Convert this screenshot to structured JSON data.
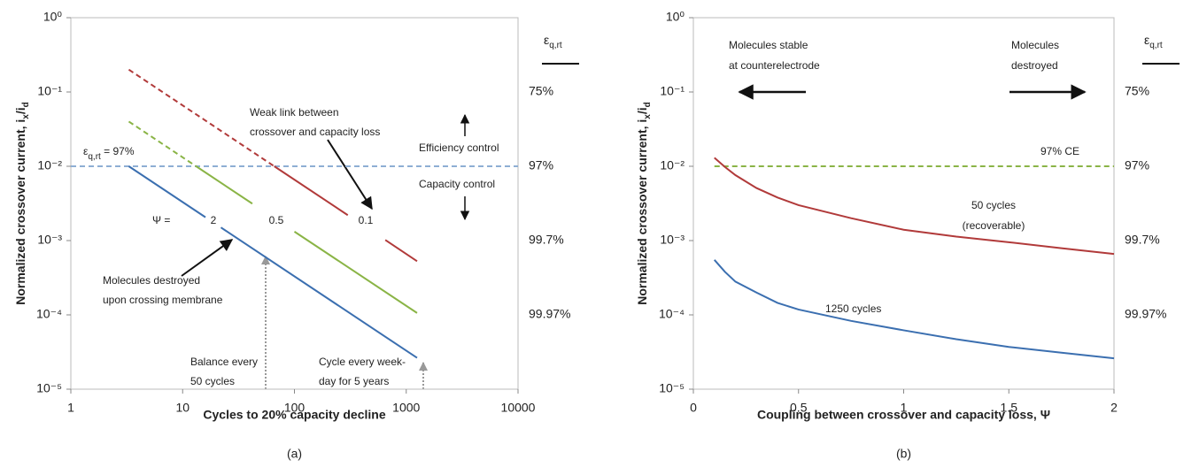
{
  "chart_data": [
    {
      "type": "line",
      "xscale": "log",
      "yscale": "log",
      "xlim": [
        1,
        10000
      ],
      "ylim": [
        1e-05,
        1
      ],
      "xticks": [
        1,
        10,
        100,
        1000,
        10000
      ],
      "yticks": [
        {
          "value": 1,
          "label": "10⁰"
        },
        {
          "value": 0.1,
          "label": "10⁻¹"
        },
        {
          "value": 0.01,
          "label": "10⁻²"
        },
        {
          "value": 0.001,
          "label": "10⁻³"
        },
        {
          "value": 0.0001,
          "label": "10⁻⁴"
        },
        {
          "value": 1e-05,
          "label": "10⁻⁵"
        }
      ],
      "x_title": "Cycles to 20% capacity decline",
      "y_title": [
        "Normalized crossover current, i",
        "x",
        "/i",
        "d"
      ],
      "y2_title": [
        "ε",
        "q,rt"
      ],
      "right_labels": [
        {
          "y": 0.1,
          "text": "75%"
        },
        {
          "y": 0.01,
          "text": "97%"
        },
        {
          "y": 0.001,
          "text": "99.7%"
        },
        {
          "y": 0.0001,
          "text": "99.97%"
        }
      ],
      "caption": "(a)",
      "series": [
        {
          "color": "#8eaed4",
          "dash": true,
          "x": [
            1,
            10000
          ],
          "values": [
            0.01,
            0.01
          ]
        },
        {
          "color": "#3b6fb0",
          "dash": false,
          "x": [
            3.3,
            16,
            null,
            22,
            1250
          ],
          "values": [
            0.01,
            0.00206,
            null,
            0.0015,
            2.64e-05
          ]
        },
        {
          "color": "#8ab446",
          "dash": true,
          "x": [
            3.3,
            13.2
          ],
          "values": [
            0.04,
            0.01
          ]
        },
        {
          "color": "#8ab446",
          "dash": false,
          "x": [
            13.2,
            42,
            null,
            100,
            1250
          ],
          "values": [
            0.01,
            0.00314,
            null,
            0.00132,
            0.000106
          ]
        },
        {
          "color": "#b13a3a",
          "dash": true,
          "x": [
            3.3,
            66
          ],
          "values": [
            0.2,
            0.01
          ]
        },
        {
          "color": "#b13a3a",
          "dash": false,
          "x": [
            66,
            300,
            null,
            650,
            1250
          ],
          "values": [
            0.01,
            0.0022,
            null,
            0.00102,
            0.000528
          ]
        }
      ],
      "annotations": [
        "Weak link between",
        "crossover and capacity loss",
        "Efficiency control",
        "Capacity control",
        "Ψ =",
        "2",
        "0.5",
        "0.1",
        [
          "ε",
          "q,rt",
          " = 97%"
        ],
        "Molecules destroyed",
        "upon crossing membrane",
        "Balance every",
        "50 cycles",
        "Cycle every week-",
        "day for 5 years"
      ]
    },
    {
      "type": "line",
      "xscale": "linear",
      "yscale": "log",
      "xlim": [
        0,
        2
      ],
      "ylim": [
        1e-05,
        1
      ],
      "xticks": [
        0,
        0.5,
        1,
        1.5,
        2
      ],
      "yticks": [
        {
          "value": 1,
          "label": "10⁰"
        },
        {
          "value": 0.1,
          "label": "10⁻¹"
        },
        {
          "value": 0.01,
          "label": "10⁻²"
        },
        {
          "value": 0.001,
          "label": "10⁻³"
        },
        {
          "value": 0.0001,
          "label": "10⁻⁴"
        },
        {
          "value": 1e-05,
          "label": "10⁻⁵"
        }
      ],
      "x_title": "Coupling between crossover and capacity loss, Ψ",
      "y_title": [
        "Normalized crossover current, i",
        "x",
        "/i",
        "d"
      ],
      "y2_title": [
        "ε",
        "q,rt"
      ],
      "right_labels": [
        {
          "y": 0.1,
          "text": "75%"
        },
        {
          "y": 0.01,
          "text": "97%"
        },
        {
          "y": 0.001,
          "text": "99.7%"
        },
        {
          "y": 0.0001,
          "text": "99.97%"
        }
      ],
      "caption": "(b)",
      "series": [
        {
          "color": "#8ab446",
          "dash": true,
          "x": [
            0.1,
            2
          ],
          "values": [
            0.01,
            0.01
          ]
        },
        {
          "color": "#b13a3a",
          "dash": false,
          "x": [
            0.1,
            0.15,
            0.2,
            0.3,
            0.4,
            0.5,
            0.75,
            1,
            1.25,
            1.5,
            1.75,
            2
          ],
          "values": [
            0.013,
            0.0098,
            0.0076,
            0.0051,
            0.0038,
            0.003,
            0.002,
            0.0014,
            0.00113,
            0.00095,
            0.00079,
            0.00066
          ]
        },
        {
          "color": "#3b6fb0",
          "dash": false,
          "x": [
            0.1,
            0.15,
            0.2,
            0.3,
            0.4,
            0.5,
            0.75,
            1,
            1.25,
            1.5,
            1.75,
            2
          ],
          "values": [
            0.00055,
            0.00038,
            0.00028,
            0.0002,
            0.000145,
            0.000118,
            8.3e-05,
            6.2e-05,
            4.7e-05,
            3.7e-05,
            3.1e-05,
            2.6e-05
          ]
        }
      ],
      "annotations": [
        "Molecules stable",
        "at counterelectrode",
        "Molecules",
        "destroyed",
        "97% CE",
        "50 cycles",
        "(recoverable)",
        "1250 cycles"
      ]
    }
  ]
}
